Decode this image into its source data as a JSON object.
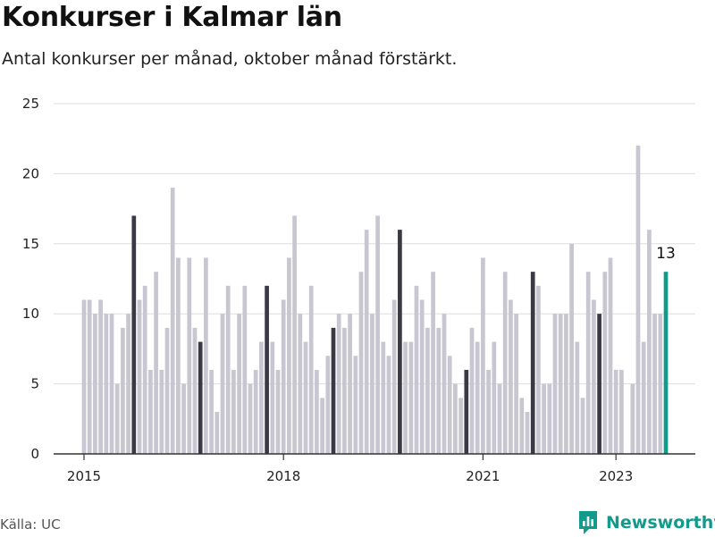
{
  "title": "Konkurser i Kalmar län",
  "subtitle": "Antal konkurser per månad, oktober månad förstärkt.",
  "source": "Källa: UC",
  "brand": {
    "name": "Newsworthy",
    "icon": "newsworthy-logo-icon"
  },
  "colors": {
    "bar": "#c7c6d1",
    "highlight_bar": "#3a3945",
    "latest_bar": "#129a8a",
    "grid": "#dddddd",
    "baseline": "#333333"
  },
  "chart_data": {
    "type": "bar",
    "title": "Konkurser i Kalmar län",
    "subtitle": "Antal konkurser per månad, oktober månad förstärkt.",
    "xlabel": "",
    "ylabel": "",
    "ylim": [
      0,
      25
    ],
    "y_ticks": [
      0,
      5,
      10,
      15,
      20,
      25
    ],
    "x_ticks": [
      {
        "label": "2015",
        "index": 0
      },
      {
        "label": "2018",
        "index": 36
      },
      {
        "label": "2021",
        "index": 72
      },
      {
        "label": "2023",
        "index": 96
      }
    ],
    "start": "2015-01",
    "highlight_month": "oktober",
    "grid": true,
    "categories": [
      "2015-01",
      "2015-02",
      "2015-03",
      "2015-04",
      "2015-05",
      "2015-06",
      "2015-07",
      "2015-08",
      "2015-09",
      "2015-10",
      "2015-11",
      "2015-12",
      "2016-01",
      "2016-02",
      "2016-03",
      "2016-04",
      "2016-05",
      "2016-06",
      "2016-07",
      "2016-08",
      "2016-09",
      "2016-10",
      "2016-11",
      "2016-12",
      "2017-01",
      "2017-02",
      "2017-03",
      "2017-04",
      "2017-05",
      "2017-06",
      "2017-07",
      "2017-08",
      "2017-09",
      "2017-10",
      "2017-11",
      "2017-12",
      "2018-01",
      "2018-02",
      "2018-03",
      "2018-04",
      "2018-05",
      "2018-06",
      "2018-07",
      "2018-08",
      "2018-09",
      "2018-10",
      "2018-11",
      "2018-12",
      "2019-01",
      "2019-02",
      "2019-03",
      "2019-04",
      "2019-05",
      "2019-06",
      "2019-07",
      "2019-08",
      "2019-09",
      "2019-10",
      "2019-11",
      "2019-12",
      "2020-01",
      "2020-02",
      "2020-03",
      "2020-04",
      "2020-05",
      "2020-06",
      "2020-07",
      "2020-08",
      "2020-09",
      "2020-10",
      "2020-11",
      "2020-12",
      "2021-01",
      "2021-02",
      "2021-03",
      "2021-04",
      "2021-05",
      "2021-06",
      "2021-07",
      "2021-08",
      "2021-09",
      "2021-10",
      "2021-11",
      "2021-12",
      "2022-01",
      "2022-02",
      "2022-03",
      "2022-04",
      "2022-05",
      "2022-06",
      "2022-07",
      "2022-08",
      "2022-09",
      "2022-10",
      "2022-11",
      "2022-12",
      "2023-01",
      "2023-02",
      "2023-03",
      "2023-04",
      "2023-05",
      "2023-06",
      "2023-07",
      "2023-08",
      "2023-09",
      "2023-10"
    ],
    "values": [
      11,
      11,
      10,
      11,
      10,
      10,
      5,
      9,
      10,
      17,
      11,
      12,
      6,
      13,
      6,
      9,
      19,
      14,
      5,
      14,
      9,
      8,
      14,
      6,
      3,
      10,
      12,
      6,
      10,
      12,
      5,
      6,
      8,
      12,
      8,
      6,
      11,
      14,
      17,
      10,
      8,
      12,
      6,
      4,
      7,
      9,
      10,
      9,
      10,
      7,
      13,
      16,
      10,
      17,
      8,
      7,
      11,
      16,
      8,
      8,
      12,
      11,
      9,
      13,
      9,
      10,
      7,
      5,
      4,
      6,
      9,
      8,
      14,
      6,
      8,
      5,
      13,
      11,
      10,
      4,
      3,
      13,
      12,
      5,
      5,
      10,
      10,
      10,
      15,
      8,
      4,
      13,
      11,
      10,
      13,
      14,
      6,
      6,
      0,
      5,
      22,
      8,
      16,
      10,
      10,
      13
    ],
    "value_labels": [
      {
        "index": 105,
        "text": "13"
      }
    ]
  }
}
